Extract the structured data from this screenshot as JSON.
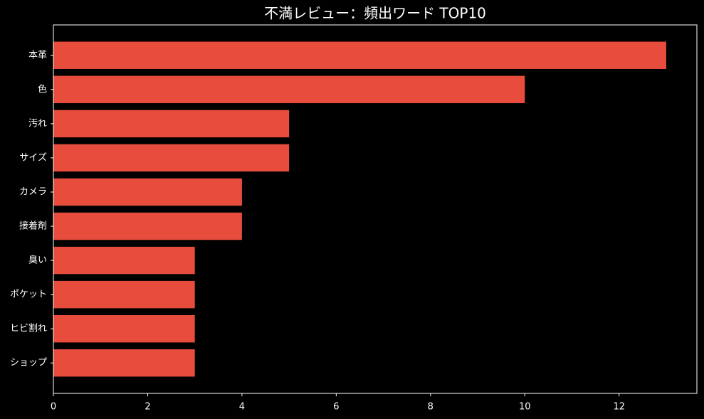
{
  "chart_data": {
    "type": "barh",
    "title": "不満レビュー：頻出ワード TOP10",
    "categories": [
      "本革",
      "色",
      "汚れ",
      "サイズ",
      "カメラ",
      "接着剤",
      "臭い",
      "ポケット",
      "ヒビ割れ",
      "ショップ"
    ],
    "values": [
      13,
      10,
      5,
      5,
      4,
      4,
      3,
      3,
      3,
      3
    ],
    "color": "#e74c3c",
    "xlim": [
      0,
      13.65
    ],
    "xticks": [
      0,
      2,
      4,
      6,
      8,
      10,
      12
    ],
    "grid": false
  }
}
